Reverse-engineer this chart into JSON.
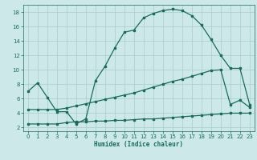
{
  "xlabel": "Humidex (Indice chaleur)",
  "bg_color": "#cce8e8",
  "grid_color": "#aacccc",
  "line_color": "#1a6b5a",
  "xlim": [
    -0.5,
    23.5
  ],
  "ylim": [
    1.5,
    19.0
  ],
  "yticks": [
    2,
    4,
    6,
    8,
    10,
    12,
    14,
    16,
    18
  ],
  "xticks": [
    0,
    1,
    2,
    3,
    4,
    5,
    6,
    7,
    8,
    9,
    10,
    11,
    12,
    13,
    14,
    15,
    16,
    17,
    18,
    19,
    20,
    21,
    22,
    23
  ],
  "curve1_x": [
    0,
    1,
    2,
    3,
    4,
    5,
    6,
    7,
    8,
    9,
    10,
    11,
    12,
    13,
    14,
    15,
    16,
    17,
    18,
    19,
    20,
    21,
    22,
    23
  ],
  "curve1_y": [
    7.0,
    8.2,
    6.2,
    4.2,
    4.2,
    2.5,
    3.2,
    8.5,
    10.5,
    13.0,
    15.2,
    15.5,
    17.2,
    17.8,
    18.2,
    18.4,
    18.2,
    17.5,
    16.2,
    14.2,
    12.0,
    10.2,
    10.2,
    5.2
  ],
  "curve2_x": [
    0,
    1,
    2,
    3,
    4,
    5,
    6,
    7,
    8,
    9,
    10,
    11,
    12,
    13,
    14,
    15,
    16,
    17,
    18,
    19,
    20,
    21,
    22,
    23
  ],
  "curve2_y": [
    4.5,
    4.5,
    4.5,
    4.5,
    4.7,
    5.0,
    5.3,
    5.6,
    5.9,
    6.2,
    6.5,
    6.8,
    7.2,
    7.6,
    8.0,
    8.4,
    8.7,
    9.1,
    9.5,
    9.9,
    10.0,
    5.2,
    5.8,
    4.8
  ],
  "curve3_x": [
    0,
    1,
    2,
    3,
    4,
    5,
    6,
    7,
    8,
    9,
    10,
    11,
    12,
    13,
    14,
    15,
    16,
    17,
    18,
    19,
    20,
    21,
    22,
    23
  ],
  "curve3_y": [
    2.5,
    2.5,
    2.5,
    2.5,
    2.7,
    2.8,
    2.8,
    2.9,
    2.9,
    3.0,
    3.0,
    3.1,
    3.2,
    3.2,
    3.3,
    3.4,
    3.5,
    3.6,
    3.7,
    3.8,
    3.9,
    4.0,
    4.0,
    4.0
  ]
}
